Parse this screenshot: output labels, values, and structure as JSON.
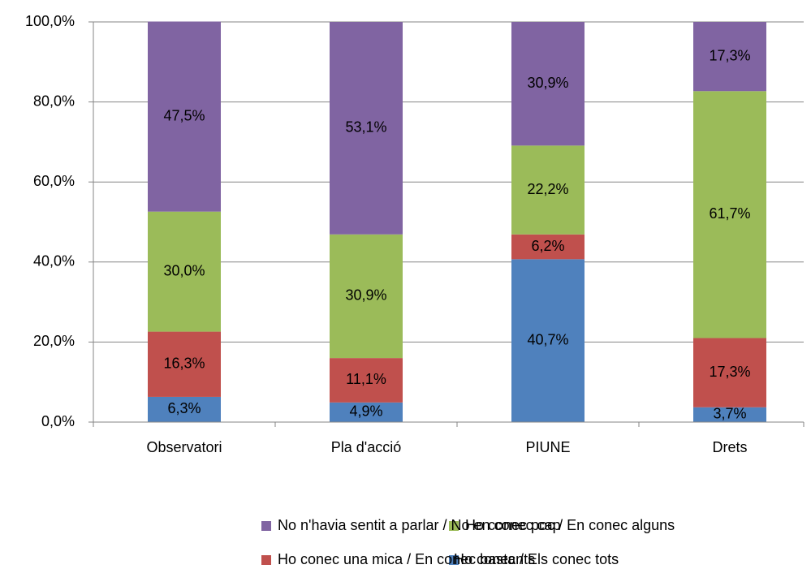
{
  "chart_data": {
    "type": "stacked_bar",
    "categories": [
      "Observatori",
      "Pla d'acció",
      "PIUNE",
      "Drets"
    ],
    "series": [
      {
        "name": "Ho conec / Els conec tots",
        "color": "#4f81bd",
        "values": [
          6.3,
          4.9,
          40.7,
          3.7
        ],
        "value_labels": [
          "6,3%",
          "4,9%",
          "40,7%",
          "3,7%"
        ]
      },
      {
        "name": "Ho conec una mica / En conec bastants",
        "color": "#c0504d",
        "values": [
          16.3,
          11.1,
          6.2,
          17.3
        ],
        "value_labels": [
          "16,3%",
          "11,1%",
          "6,2%",
          "17,3%"
        ]
      },
      {
        "name": "Ho conec poc / En conec alguns",
        "color": "#9bbb59",
        "values": [
          30.0,
          30.9,
          22.2,
          61.7
        ],
        "value_labels": [
          "30,0%",
          "30,9%",
          "22,2%",
          "61,7%"
        ]
      },
      {
        "name": "No n'havia sentit a parlar / No en conec cap",
        "color": "#8064a2",
        "values": [
          47.5,
          53.1,
          30.9,
          17.3
        ],
        "value_labels": [
          "47,5%",
          "53,1%",
          "30,9%",
          "17,3%"
        ]
      }
    ],
    "ylim": [
      0,
      100
    ],
    "yticks": [
      {
        "value": 0,
        "label": "0,0%"
      },
      {
        "value": 20,
        "label": "20,0%"
      },
      {
        "value": 40,
        "label": "40,0%"
      },
      {
        "value": 60,
        "label": "60,0%"
      },
      {
        "value": 80,
        "label": "80,0%"
      },
      {
        "value": 100,
        "label": "100,0%"
      }
    ],
    "grid": true,
    "legend": "bottom"
  }
}
